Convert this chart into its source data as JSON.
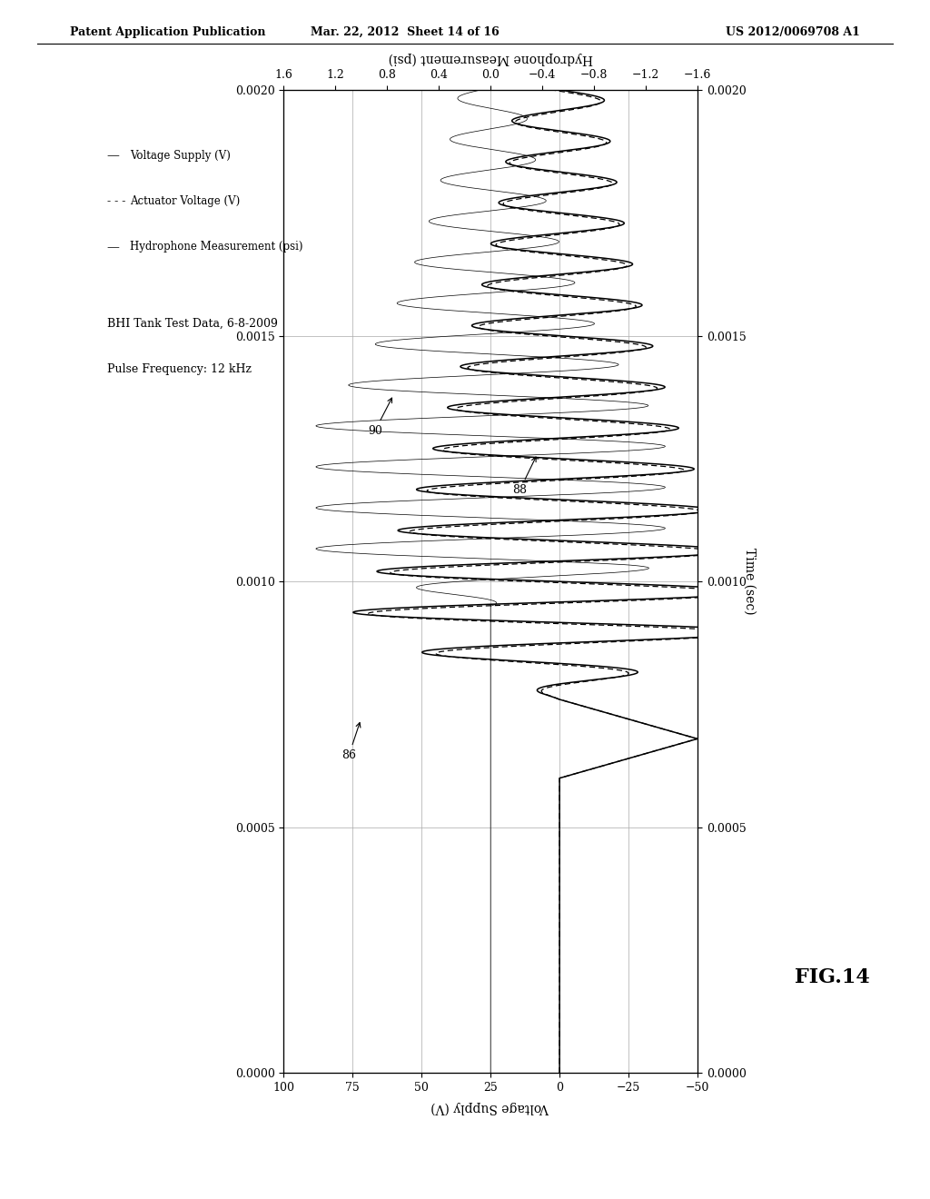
{
  "header_left": "Patent Application Publication",
  "header_mid": "Mar. 22, 2012  Sheet 14 of 16",
  "header_right": "US 2012/0069708 A1",
  "fig_label": "FIG.14",
  "title_line1": "BHI Tank Test Data, 6-8-2009",
  "title_line2": "Pulse Frequency: 12 kHz",
  "time_label": "Time (sec)",
  "ylabel_bottom": "Voltage Supply (V)",
  "ylabel_top": "Hydrophone Measurement (psi)",
  "xlim_voltage": [
    100,
    -50
  ],
  "xticks_voltage": [
    100,
    75,
    50,
    25,
    0,
    -25,
    -50
  ],
  "ylim_time": [
    0,
    0.002
  ],
  "yticks_time": [
    0,
    0.0005,
    0.001,
    0.0015,
    0.002
  ],
  "xlim_hydro": [
    1.6,
    -1.6
  ],
  "xticks_hydro": [
    1.6,
    1.2,
    0.8,
    0.4,
    0,
    -0.4,
    -0.8,
    -1.2,
    -1.6
  ],
  "freq": 12000,
  "background_color": "#ffffff",
  "grid_color": "#aaaaaa"
}
